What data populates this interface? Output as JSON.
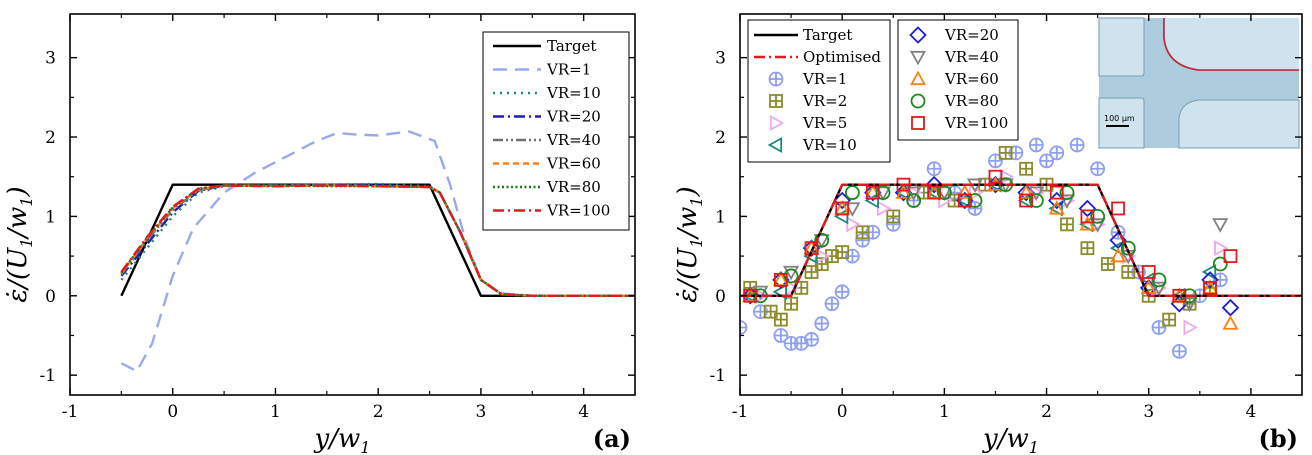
{
  "chart_data": [
    {
      "type": "line",
      "panel_label": "(a)",
      "xlabel_main": "y/w",
      "xlabel_sub": "1",
      "ylabel_main": "ε̇/(U",
      "ylabel_sub1": "1",
      "ylabel_mid": "/w",
      "ylabel_sub2": "1",
      "ylabel_end": ")",
      "xlim": [
        -1,
        4.5
      ],
      "ylim": [
        -1.25,
        3.55
      ],
      "xticks": [
        -1,
        0,
        1,
        2,
        3,
        4
      ],
      "yticks": [
        -1,
        0,
        1,
        2,
        3
      ],
      "series": [
        {
          "name": "Target",
          "color": "#000000",
          "dash": "solid",
          "x": [
            -0.5,
            0,
            2.5,
            3,
            4.5
          ],
          "y": [
            0,
            1.4,
            1.4,
            0,
            0
          ]
        },
        {
          "name": "VR=1",
          "color": "#9aa8f0",
          "dash": "long-dash",
          "x": [
            -0.5,
            -0.35,
            -0.2,
            0,
            0.2,
            0.5,
            0.8,
            1.1,
            1.4,
            1.6,
            1.8,
            2.0,
            2.3,
            2.55,
            2.7,
            2.85,
            3.0,
            3.2,
            3.5,
            4.5
          ],
          "y": [
            -0.85,
            -0.95,
            -0.6,
            0.25,
            0.85,
            1.3,
            1.55,
            1.75,
            1.95,
            2.05,
            2.03,
            2.02,
            2.07,
            1.95,
            1.4,
            0.7,
            0.2,
            0.03,
            0,
            0
          ]
        },
        {
          "name": "VR=10",
          "color": "#1a8a7a",
          "dash": "dotted",
          "x": [
            -0.5,
            -0.25,
            0,
            0.25,
            0.5,
            1.0,
            1.5,
            2.0,
            2.5,
            2.6,
            2.8,
            3.0,
            3.2,
            3.5,
            4.5
          ],
          "y": [
            0.2,
            0.6,
            1.0,
            1.3,
            1.38,
            1.39,
            1.4,
            1.41,
            1.38,
            1.3,
            0.8,
            0.2,
            0.02,
            0,
            0
          ]
        },
        {
          "name": "VR=20",
          "color": "#1f1fbf",
          "dash": "dash-dot",
          "x": [
            -0.5,
            -0.25,
            0,
            0.25,
            0.5,
            1.0,
            1.5,
            2.0,
            2.5,
            2.6,
            2.8,
            3.0,
            3.2,
            3.5,
            4.5
          ],
          "y": [
            0.25,
            0.65,
            1.05,
            1.32,
            1.39,
            1.38,
            1.4,
            1.39,
            1.37,
            1.3,
            0.8,
            0.2,
            0.02,
            0,
            0
          ]
        },
        {
          "name": "VR=40",
          "color": "#707070",
          "dash": "dash-dot-dot",
          "x": [
            -0.5,
            -0.25,
            0,
            0.25,
            0.5,
            1.0,
            1.5,
            2.0,
            2.5,
            2.6,
            2.8,
            3.0,
            3.2,
            3.5,
            4.5
          ],
          "y": [
            0.27,
            0.7,
            1.08,
            1.33,
            1.39,
            1.39,
            1.39,
            1.38,
            1.37,
            1.3,
            0.8,
            0.2,
            0.02,
            0,
            0
          ]
        },
        {
          "name": "VR=60",
          "color": "#ff7f0e",
          "dash": "short-dash",
          "x": [
            -0.5,
            -0.25,
            0,
            0.25,
            0.5,
            1.0,
            1.5,
            2.0,
            2.5,
            2.6,
            2.8,
            3.0,
            3.2,
            3.5,
            4.5
          ],
          "y": [
            0.28,
            0.72,
            1.1,
            1.34,
            1.39,
            1.38,
            1.39,
            1.38,
            1.37,
            1.3,
            0.8,
            0.2,
            0.02,
            0,
            0
          ]
        },
        {
          "name": "VR=80",
          "color": "#1b7a1b",
          "dash": "dense-dot",
          "x": [
            -0.5,
            -0.25,
            0,
            0.25,
            0.5,
            1.0,
            1.5,
            2.0,
            2.5,
            2.6,
            2.8,
            3.0,
            3.2,
            3.5,
            4.5
          ],
          "y": [
            0.29,
            0.73,
            1.11,
            1.35,
            1.39,
            1.39,
            1.38,
            1.38,
            1.37,
            1.3,
            0.8,
            0.2,
            0.02,
            0,
            0
          ]
        },
        {
          "name": "VR=100",
          "color": "#e31a1c",
          "dash": "dash-dot",
          "x": [
            -0.5,
            -0.25,
            0,
            0.25,
            0.5,
            1.0,
            1.5,
            2.0,
            2.5,
            2.6,
            2.8,
            3.0,
            3.2,
            3.5,
            4.5
          ],
          "y": [
            0.3,
            0.74,
            1.12,
            1.35,
            1.39,
            1.38,
            1.39,
            1.38,
            1.37,
            1.3,
            0.8,
            0.2,
            0.02,
            0,
            0
          ]
        }
      ]
    },
    {
      "type": "scatter",
      "panel_label": "(b)",
      "xlabel_main": "y/w",
      "xlabel_sub": "1",
      "ylabel_main": "ε̇/(U",
      "ylabel_sub1": "1",
      "ylabel_mid": "/w",
      "ylabel_sub2": "1",
      "ylabel_end": ")",
      "xlim": [
        -1,
        4.5
      ],
      "ylim": [
        -1.25,
        3.55
      ],
      "xticks": [
        -1,
        0,
        1,
        2,
        3,
        4
      ],
      "yticks": [
        -1,
        0,
        1,
        2,
        3
      ],
      "inset": {
        "scale_label": "100 µm"
      },
      "series": [
        {
          "name": "Target",
          "kind": "line",
          "color": "#000000",
          "dash": "solid",
          "x": [
            -1,
            -0.5,
            0,
            2.5,
            3,
            4.5
          ],
          "y": [
            0,
            0,
            1.4,
            1.4,
            0,
            0
          ]
        },
        {
          "name": "Optimised",
          "kind": "line",
          "color": "#e31a1c",
          "dash": "dash-dot",
          "x": [
            -1,
            -0.5,
            0,
            2.5,
            3,
            4.5
          ],
          "y": [
            0,
            0,
            1.4,
            1.4,
            0,
            0
          ]
        },
        {
          "name": "VR=1",
          "kind": "marker",
          "marker": "circle-plus",
          "color": "#8f9ff0",
          "x": [
            -1,
            -0.8,
            -0.6,
            -0.5,
            -0.4,
            -0.3,
            -0.2,
            -0.1,
            0.0,
            0.1,
            0.2,
            0.3,
            0.5,
            0.7,
            0.9,
            1.1,
            1.3,
            1.5,
            1.7,
            1.9,
            2.0,
            2.1,
            2.3,
            2.5,
            2.7,
            2.9,
            3.1,
            3.3,
            3.5,
            3.7
          ],
          "y": [
            -0.4,
            -0.2,
            -0.5,
            -0.6,
            -0.6,
            -0.55,
            -0.35,
            -0.1,
            0.05,
            0.5,
            0.7,
            0.8,
            0.9,
            1.2,
            1.6,
            1.3,
            1.1,
            1.7,
            1.8,
            1.9,
            1.7,
            1.8,
            1.9,
            1.6,
            0.8,
            0.3,
            -0.4,
            -0.7,
            0.0,
            0.2
          ]
        },
        {
          "name": "VR=2",
          "kind": "marker",
          "marker": "square-plus",
          "color": "#8b8b2a",
          "x": [
            -0.9,
            -0.7,
            -0.6,
            -0.5,
            -0.4,
            -0.3,
            -0.2,
            -0.1,
            0.0,
            0.2,
            0.5,
            0.8,
            1.1,
            1.4,
            1.6,
            1.8,
            2.0,
            2.2,
            2.4,
            2.6,
            2.8,
            3.0,
            3.2,
            3.4,
            3.6
          ],
          "y": [
            0.1,
            -0.2,
            -0.3,
            -0.1,
            0.1,
            0.3,
            0.4,
            0.5,
            0.55,
            0.8,
            1.0,
            1.3,
            1.2,
            1.4,
            1.8,
            1.6,
            1.4,
            0.9,
            0.6,
            0.4,
            0.3,
            0.0,
            -0.3,
            -0.1,
            0.1
          ]
        },
        {
          "name": "VR=5",
          "kind": "marker",
          "marker": "triangle-right",
          "color": "#f0a8f0",
          "x": [
            -0.8,
            -0.5,
            -0.2,
            0.1,
            0.4,
            0.7,
            1.0,
            1.3,
            1.6,
            1.9,
            2.2,
            2.5,
            2.8,
            3.1,
            3.4,
            3.7
          ],
          "y": [
            0.0,
            0.1,
            0.5,
            0.9,
            1.1,
            1.3,
            1.2,
            1.3,
            1.5,
            1.3,
            1.2,
            0.9,
            0.5,
            0.1,
            -0.4,
            0.6
          ]
        },
        {
          "name": "VR=10",
          "kind": "marker",
          "marker": "triangle-left",
          "color": "#1a8a7a",
          "x": [
            -0.9,
            -0.6,
            -0.3,
            0.0,
            0.3,
            0.6,
            0.9,
            1.2,
            1.5,
            1.8,
            2.1,
            2.4,
            2.7,
            3.0,
            3.3,
            3.6
          ],
          "y": [
            0.0,
            0.05,
            0.5,
            1.0,
            1.2,
            1.3,
            1.3,
            1.2,
            1.4,
            1.2,
            1.1,
            0.9,
            0.6,
            0.2,
            0.0,
            0.3
          ]
        },
        {
          "name": "VR=20",
          "kind": "marker",
          "marker": "diamond",
          "color": "#1f1fcf",
          "x": [
            -0.9,
            -0.6,
            -0.3,
            0.0,
            0.3,
            0.6,
            0.9,
            1.2,
            1.5,
            1.8,
            2.1,
            2.4,
            2.7,
            3.0,
            3.3,
            3.6,
            3.8
          ],
          "y": [
            0.0,
            0.2,
            0.6,
            1.2,
            1.3,
            1.3,
            1.4,
            1.2,
            1.4,
            1.3,
            1.2,
            1.1,
            0.7,
            0.1,
            -0.1,
            0.2,
            -0.15
          ]
        },
        {
          "name": "VR=40",
          "kind": "marker",
          "marker": "triangle-down",
          "color": "#808080",
          "x": [
            -0.8,
            -0.5,
            -0.2,
            0.1,
            0.4,
            0.7,
            1.0,
            1.3,
            1.6,
            1.9,
            2.2,
            2.5,
            2.8,
            3.1,
            3.4,
            3.7
          ],
          "y": [
            0.05,
            0.3,
            0.7,
            1.1,
            1.3,
            1.3,
            1.3,
            1.4,
            1.4,
            1.3,
            1.2,
            0.9,
            0.5,
            0.1,
            -0.1,
            0.9
          ]
        },
        {
          "name": "VR=60",
          "kind": "marker",
          "marker": "triangle-up",
          "color": "#ff7f0e",
          "x": [
            -0.9,
            -0.6,
            -0.3,
            0.0,
            0.3,
            0.6,
            0.9,
            1.2,
            1.5,
            1.8,
            2.1,
            2.4,
            2.7,
            3.0,
            3.3,
            3.6,
            3.8
          ],
          "y": [
            0.0,
            0.2,
            0.6,
            1.1,
            1.3,
            1.3,
            1.3,
            1.3,
            1.4,
            1.3,
            1.1,
            0.9,
            0.5,
            0.1,
            0.0,
            0.1,
            -0.35
          ]
        },
        {
          "name": "VR=80",
          "kind": "marker",
          "marker": "circle",
          "color": "#1b8a1b",
          "x": [
            -0.8,
            -0.5,
            -0.2,
            0.1,
            0.4,
            0.7,
            1.0,
            1.3,
            1.6,
            1.9,
            2.2,
            2.5,
            2.8,
            3.1,
            3.4,
            3.7
          ],
          "y": [
            0.0,
            0.25,
            0.7,
            1.3,
            1.3,
            1.2,
            1.3,
            1.2,
            1.4,
            1.2,
            1.3,
            1.0,
            0.6,
            0.2,
            0.0,
            0.4
          ]
        },
        {
          "name": "VR=100",
          "kind": "marker",
          "marker": "square",
          "color": "#e31a1c",
          "x": [
            -0.9,
            -0.6,
            -0.3,
            0.0,
            0.3,
            0.6,
            0.9,
            1.2,
            1.5,
            1.8,
            2.1,
            2.4,
            2.7,
            3.0,
            3.3,
            3.6,
            3.8
          ],
          "y": [
            0.0,
            0.2,
            0.6,
            1.1,
            1.3,
            1.4,
            1.3,
            1.2,
            1.5,
            1.2,
            1.3,
            1.0,
            1.1,
            0.3,
            0.0,
            0.1,
            0.5
          ]
        }
      ]
    }
  ]
}
